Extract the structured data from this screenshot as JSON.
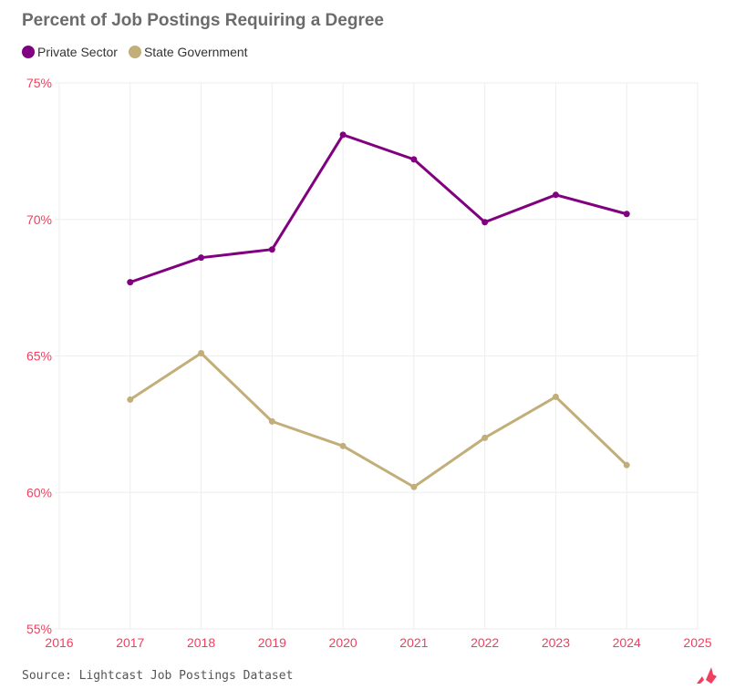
{
  "chart_data": {
    "type": "line",
    "title": "Percent of Job Postings Requiring a Degree",
    "x": [
      2017,
      2018,
      2019,
      2020,
      2021,
      2022,
      2023,
      2024
    ],
    "series": [
      {
        "name": "Private Sector",
        "color": "#800080",
        "values": [
          67.7,
          68.6,
          68.9,
          73.1,
          72.2,
          69.9,
          70.9,
          70.2
        ]
      },
      {
        "name": "State Government",
        "color": "#c2ae78",
        "values": [
          63.4,
          65.1,
          62.6,
          61.7,
          60.2,
          62.0,
          63.5,
          61.0
        ]
      }
    ],
    "xlim": [
      2016,
      2025
    ],
    "ylim": [
      55,
      75
    ],
    "xticks": [
      "2016",
      "2017",
      "2018",
      "2019",
      "2020",
      "2021",
      "2022",
      "2023",
      "2024",
      "2025"
    ],
    "yticks": [
      "55%",
      "60%",
      "65%",
      "70%",
      "75%"
    ],
    "grid": true,
    "legend": "top-left",
    "tick_color": "#f0405e"
  },
  "source": "Source: Lightcast Job Postings Dataset"
}
